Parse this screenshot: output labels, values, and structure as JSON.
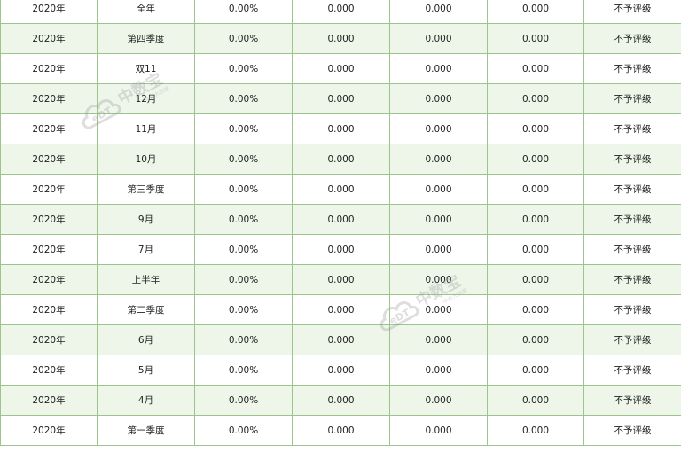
{
  "table": {
    "rows": [
      [
        "2020年",
        "全年",
        "0.00%",
        "0.000",
        "0.000",
        "0.000",
        "不予评级"
      ],
      [
        "2020年",
        "第四季度",
        "0.00%",
        "0.000",
        "0.000",
        "0.000",
        "不予评级"
      ],
      [
        "2020年",
        "双11",
        "0.00%",
        "0.000",
        "0.000",
        "0.000",
        "不予评级"
      ],
      [
        "2020年",
        "12月",
        "0.00%",
        "0.000",
        "0.000",
        "0.000",
        "不予评级"
      ],
      [
        "2020年",
        "11月",
        "0.00%",
        "0.000",
        "0.000",
        "0.000",
        "不予评级"
      ],
      [
        "2020年",
        "10月",
        "0.00%",
        "0.000",
        "0.000",
        "0.000",
        "不予评级"
      ],
      [
        "2020年",
        "第三季度",
        "0.00%",
        "0.000",
        "0.000",
        "0.000",
        "不予评级"
      ],
      [
        "2020年",
        "9月",
        "0.00%",
        "0.000",
        "0.000",
        "0.000",
        "不予评级"
      ],
      [
        "2020年",
        "7月",
        "0.00%",
        "0.000",
        "0.000",
        "0.000",
        "不予评级"
      ],
      [
        "2020年",
        "上半年",
        "0.00%",
        "0.000",
        "0.000",
        "0.000",
        "不予评级"
      ],
      [
        "2020年",
        "第二季度",
        "0.00%",
        "0.000",
        "0.000",
        "0.000",
        "不予评级"
      ],
      [
        "2020年",
        "6月",
        "0.00%",
        "0.000",
        "0.000",
        "0.000",
        "不予评级"
      ],
      [
        "2020年",
        "5月",
        "0.00%",
        "0.000",
        "0.000",
        "0.000",
        "不予评级"
      ],
      [
        "2020年",
        "4月",
        "0.00%",
        "0.000",
        "0.000",
        "0.000",
        "不予评级"
      ],
      [
        "2020年",
        "第一季度",
        "0.00%",
        "0.000",
        "0.000",
        "0.000",
        "不予评级"
      ]
    ]
  },
  "watermark": {
    "logo_text": "eDT",
    "brand_text": "中数宝",
    "tagline": "中商大数据"
  },
  "colors": {
    "border": "#9cc58e",
    "stripe": "#eef6ea",
    "watermark": "#9a9a9a"
  }
}
